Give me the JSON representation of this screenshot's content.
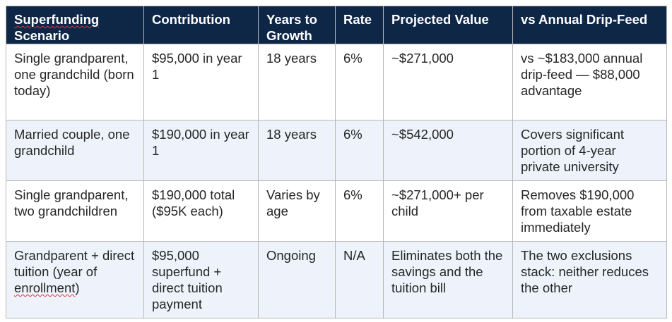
{
  "table": {
    "headers": [
      {
        "pre": "",
        "flag": "Superfunding",
        "post": " Scenario"
      },
      {
        "pre": "Contribution",
        "flag": "",
        "post": ""
      },
      {
        "pre": "Years to Growth",
        "flag": "",
        "post": ""
      },
      {
        "pre": "Rate",
        "flag": "",
        "post": ""
      },
      {
        "pre": "Projected Value",
        "flag": "",
        "post": ""
      },
      {
        "pre": "vs Annual Drip-Feed",
        "flag": "",
        "post": ""
      }
    ],
    "rows": [
      {
        "cells": [
          {
            "pre": "Single grandparent, one grandchild (born today)",
            "flag": "",
            "post": ""
          },
          {
            "pre": "$95,000 in year 1",
            "flag": "",
            "post": ""
          },
          {
            "pre": "18 years",
            "flag": "",
            "post": ""
          },
          {
            "pre": "6%",
            "flag": "",
            "post": ""
          },
          {
            "pre": "~$271,000",
            "flag": "",
            "post": ""
          },
          {
            "pre": "vs ~$183,000 annual drip-feed — $88,000 advantage",
            "flag": "",
            "post": ""
          }
        ]
      },
      {
        "cells": [
          {
            "pre": "Married couple, one grandchild",
            "flag": "",
            "post": ""
          },
          {
            "pre": "$190,000 in year 1",
            "flag": "",
            "post": ""
          },
          {
            "pre": "18 years",
            "flag": "",
            "post": ""
          },
          {
            "pre": "6%",
            "flag": "",
            "post": ""
          },
          {
            "pre": "~$542,000",
            "flag": "",
            "post": ""
          },
          {
            "pre": "Covers significant portion of 4-year private university",
            "flag": "",
            "post": ""
          }
        ]
      },
      {
        "cells": [
          {
            "pre": "Single grandparent, two grandchildren",
            "flag": "",
            "post": ""
          },
          {
            "pre": "$190,000 total ($95K each)",
            "flag": "",
            "post": ""
          },
          {
            "pre": "Varies by age",
            "flag": "",
            "post": ""
          },
          {
            "pre": "6%",
            "flag": "",
            "post": ""
          },
          {
            "pre": "~$271,000+ per child",
            "flag": "",
            "post": ""
          },
          {
            "pre": "Removes $190,000 from taxable estate immediately",
            "flag": "",
            "post": ""
          }
        ]
      },
      {
        "cells": [
          {
            "pre": "Grandparent + direct tuition (year of ",
            "flag": "enrollment",
            "post": ")"
          },
          {
            "pre": "$95,000 superfund + direct tuition payment",
            "flag": "",
            "post": ""
          },
          {
            "pre": "Ongoing",
            "flag": "",
            "post": ""
          },
          {
            "pre": "N/A",
            "flag": "",
            "post": ""
          },
          {
            "pre": "Eliminates both the savings and the tuition bill",
            "flag": "",
            "post": ""
          },
          {
            "pre": "The two exclusions stack: neither reduces the other",
            "flag": "",
            "post": ""
          }
        ]
      }
    ]
  }
}
